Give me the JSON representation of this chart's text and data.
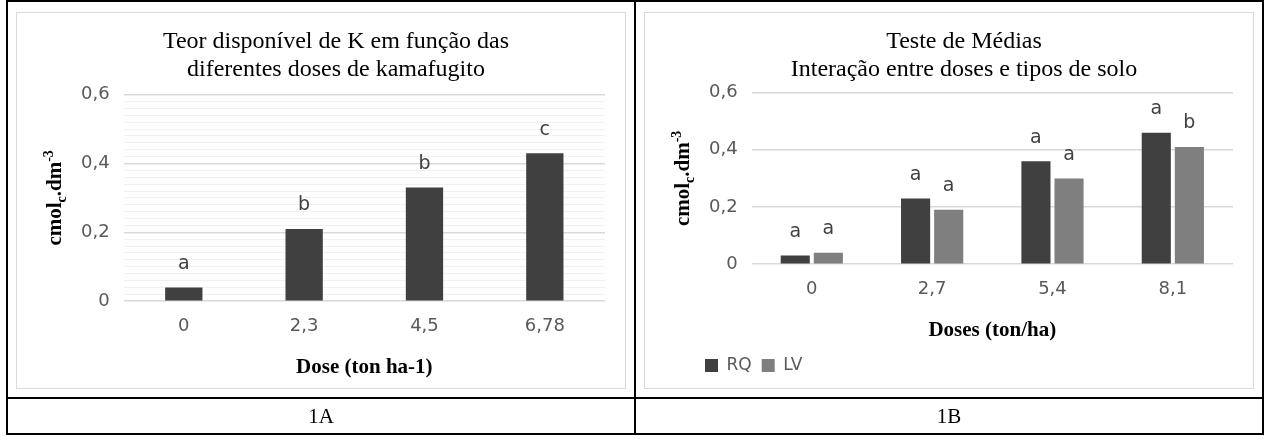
{
  "chart_data": [
    {
      "type": "bar",
      "title": "Teor disponível de K em função das diferentes doses de kamafugito",
      "xlabel": "Dose (ton ha-1)",
      "ylabel": "cmol$_{c}$.dm$^{-3}$",
      "categories": [
        "0",
        "2,3",
        "4,5",
        "6,78"
      ],
      "values": [
        0.04,
        0.21,
        0.33,
        0.43
      ],
      "color": "#404040",
      "value_labels": [
        "a",
        "b",
        "b",
        "c"
      ],
      "ylim": [
        0,
        0.6
      ],
      "yticks": [
        0,
        {
          "value": 0.02,
          "label": null
        },
        {
          "value": 0.04,
          "label": null
        },
        {
          "value": 0.06,
          "label": null
        },
        {
          "value": 0.08,
          "label": null
        },
        {
          "value": 0.1,
          "label": null
        },
        {
          "value": 0.12,
          "label": null
        },
        {
          "value": 0.14,
          "label": null
        },
        {
          "value": 0.16,
          "label": null
        },
        {
          "value": 0.18,
          "label": null
        },
        {
          "value": 0.2,
          "label": "0,2"
        },
        {
          "value": 0.22,
          "label": null
        },
        {
          "value": 0.24,
          "label": null
        },
        {
          "value": 0.26,
          "label": null
        },
        {
          "value": 0.28,
          "label": null
        },
        {
          "value": 0.3,
          "label": null
        },
        {
          "value": 0.32,
          "label": null
        },
        {
          "value": 0.34,
          "label": null
        },
        {
          "value": 0.36,
          "label": null
        },
        {
          "value": 0.38,
          "label": null
        },
        {
          "value": 0.4,
          "label": "0,4"
        },
        {
          "value": 0.42,
          "label": null
        },
        {
          "value": 0.44,
          "label": null
        },
        {
          "value": 0.46,
          "label": null
        },
        {
          "value": 0.48,
          "label": null
        },
        {
          "value": 0.5,
          "label": null
        },
        {
          "value": 0.52,
          "label": null
        },
        {
          "value": 0.54,
          "label": null
        },
        {
          "value": 0.56,
          "label": null
        },
        {
          "value": 0.58,
          "label": null
        },
        {
          "value": 0.6,
          "label": "0,6"
        }
      ],
      "grid": "y",
      "annotations": [
        "1A"
      ]
    },
    {
      "type": "bar",
      "title": "Teste de Médias",
      "subtitle": "Interação entre doses e tipos de solo",
      "xlabel": "Doses (ton/ha)",
      "ylabel": "cmol$_{c}$.dm$^{-3}$",
      "categories": [
        "0",
        "2,7",
        "5,4",
        "8,1"
      ],
      "series": [
        {
          "name": "RQ",
          "color": "#404040",
          "values": [
            0.03,
            0.23,
            0.36,
            0.46
          ],
          "value_labels": [
            "a",
            "a",
            "a",
            "a"
          ]
        },
        {
          "name": "LV",
          "color": "#7f7f7f",
          "values": [
            0.04,
            0.19,
            0.3,
            0.41
          ],
          "value_labels": [
            "a",
            "a",
            "a",
            "b"
          ]
        }
      ],
      "ylim": [
        0,
        0.6
      ],
      "yticks": [
        0,
        {
          "value": 0.2,
          "label": "0,2"
        },
        {
          "value": 0.4,
          "label": "0,4"
        },
        {
          "value": 0.6,
          "label": "0,6"
        }
      ],
      "grid": "y",
      "legend": "bottom left",
      "annotations": [
        "1B"
      ]
    }
  ]
}
